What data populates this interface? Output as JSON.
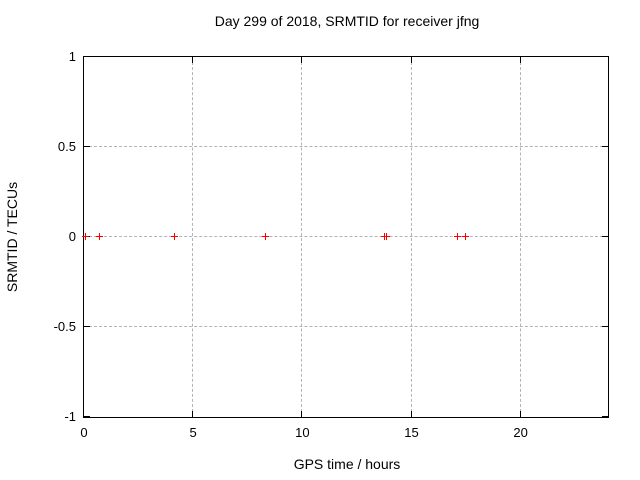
{
  "page": {
    "background": "#ffffff",
    "text_color": "#000000"
  },
  "chart_data": {
    "type": "scatter",
    "title": "Day 299 of 2018, SRMTID for receiver jfng",
    "xlabel": "GPS time / hours",
    "ylabel": "SRMTID / TECUs",
    "xlim": [
      0,
      24
    ],
    "ylim": [
      -1,
      1
    ],
    "xticks": [
      0,
      5,
      10,
      15,
      20
    ],
    "xtick_labels": [
      "0",
      "5",
      "10",
      "15",
      "20"
    ],
    "yticks": [
      1,
      0.5,
      0,
      -0.5,
      -1
    ],
    "ytick_labels": [
      "1",
      "0.5",
      "0",
      "-0.5",
      "-1"
    ],
    "grid": true,
    "legend": false,
    "marker": "plus",
    "marker_color": "#ff0000",
    "grid_color": "#b4b4b4",
    "border_color": "#000000",
    "series": [
      {
        "name": "SRMTID",
        "x": [
          0.1,
          0.75,
          4.15,
          8.35,
          13.8,
          13.9,
          17.15,
          17.5
        ],
        "y": [
          0,
          0,
          0,
          0,
          0,
          0,
          0,
          0
        ]
      }
    ]
  }
}
